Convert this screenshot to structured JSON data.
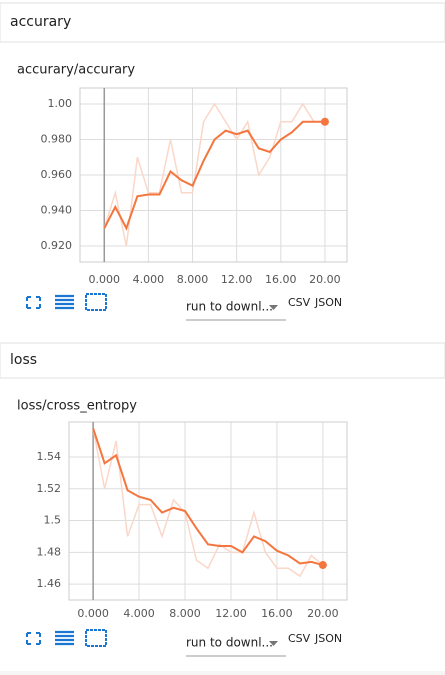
{
  "sections": [
    {
      "header": "accurary",
      "run_select": "run to downl...",
      "download_csv": "CSV",
      "download_json": "JSON"
    },
    {
      "header": "loss",
      "run_select": "run to downl...",
      "download_csv": "CSV",
      "download_json": "JSON"
    }
  ],
  "chart_data": [
    {
      "type": "line",
      "title": "accurary/accurary",
      "x": [
        0,
        1,
        2,
        3,
        4,
        5,
        6,
        7,
        8,
        9,
        10,
        11,
        12,
        13,
        14,
        15,
        16,
        17,
        18,
        19,
        20
      ],
      "series": [
        {
          "color": "#fad7c9",
          "values": [
            0.93,
            0.95,
            0.92,
            0.97,
            0.95,
            0.95,
            0.98,
            0.95,
            0.95,
            0.99,
            1.0,
            0.99,
            0.98,
            0.99,
            0.96,
            0.97,
            0.99,
            0.99,
            1.0,
            0.99,
            0.99
          ]
        },
        {
          "color": "#f4753d",
          "values": [
            0.93,
            0.942,
            0.93,
            0.948,
            0.949,
            0.949,
            0.962,
            0.957,
            0.954,
            0.968,
            0.98,
            0.985,
            0.983,
            0.985,
            0.975,
            0.973,
            0.98,
            0.984,
            0.99,
            0.99,
            0.99
          ]
        }
      ],
      "xlim": [
        -2.2,
        22
      ],
      "ylim": [
        0.911,
        1.009
      ],
      "xticks": [
        {
          "value": 0,
          "label": "0.000"
        },
        {
          "value": 4,
          "label": "4.000"
        },
        {
          "value": 8,
          "label": "8.000"
        },
        {
          "value": 12,
          "label": "12.00"
        },
        {
          "value": 16,
          "label": "16.00"
        },
        {
          "value": 20,
          "label": "20.00"
        }
      ],
      "yticks": [
        {
          "value": 0.92,
          "label": "0.920"
        },
        {
          "value": 0.94,
          "label": "0.940"
        },
        {
          "value": 0.96,
          "label": "0.960"
        },
        {
          "value": 0.98,
          "label": "0.980"
        },
        {
          "value": 1,
          "label": "1.00"
        }
      ],
      "grid": true
    },
    {
      "type": "line",
      "title": "loss/cross_entropy",
      "x": [
        0,
        1,
        2,
        3,
        4,
        5,
        6,
        7,
        8,
        9,
        10,
        11,
        12,
        13,
        14,
        15,
        16,
        17,
        18,
        19,
        20
      ],
      "series": [
        {
          "color": "#fad7c9",
          "values": [
            1.558,
            1.52,
            1.55,
            1.49,
            1.51,
            1.51,
            1.49,
            1.513,
            1.505,
            1.475,
            1.47,
            1.485,
            1.48,
            1.48,
            1.505,
            1.48,
            1.47,
            1.47,
            1.465,
            1.478,
            1.472
          ]
        },
        {
          "color": "#f4753d",
          "values": [
            1.558,
            1.536,
            1.541,
            1.519,
            1.515,
            1.513,
            1.505,
            1.508,
            1.506,
            1.495,
            1.485,
            1.484,
            1.484,
            1.48,
            1.49,
            1.487,
            1.481,
            1.478,
            1.473,
            1.474,
            1.472
          ]
        }
      ],
      "xlim": [
        -2.1,
        22.1
      ],
      "ylim": [
        1.45,
        1.562
      ],
      "xticks": [
        {
          "value": 0,
          "label": "0.000"
        },
        {
          "value": 4,
          "label": "4.000"
        },
        {
          "value": 8,
          "label": "8.000"
        },
        {
          "value": 12,
          "label": "12.00"
        },
        {
          "value": 16,
          "label": "16.00"
        },
        {
          "value": 20,
          "label": "20.00"
        }
      ],
      "yticks": [
        1.46,
        1.48,
        1.5,
        1.52,
        1.54
      ],
      "grid": true
    }
  ]
}
